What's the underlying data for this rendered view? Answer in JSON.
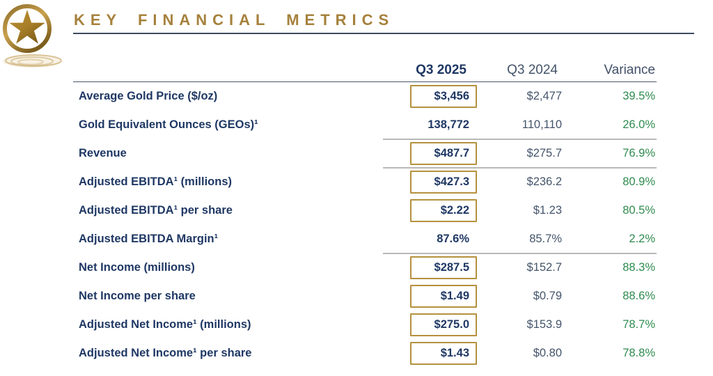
{
  "slide": {
    "title": "KEY FINANCIAL METRICS",
    "logo_icon": "gold-star-ripple-logo"
  },
  "table": {
    "columns": [
      "Q3 2025",
      "Q3 2024",
      "Variance"
    ],
    "rows": [
      {
        "label": "Average Gold Price ($/oz)",
        "q3_2025": "$3,456",
        "q3_2024": "$2,477",
        "variance": "39.5%",
        "boxed": true,
        "divider_after": false
      },
      {
        "label": "Gold Equivalent Ounces (GEOs)¹",
        "q3_2025": "138,772",
        "q3_2024": "110,110",
        "variance": "26.0%",
        "boxed": false,
        "divider_after": true
      },
      {
        "label": "Revenue",
        "q3_2025": "$487.7",
        "q3_2024": "$275.7",
        "variance": "76.9%",
        "boxed": true,
        "divider_after": true
      },
      {
        "label": "Adjusted EBITDA¹ (millions)",
        "q3_2025": "$427.3",
        "q3_2024": "$236.2",
        "variance": "80.9%",
        "boxed": true,
        "divider_after": false
      },
      {
        "label": "Adjusted EBITDA¹ per share",
        "q3_2025": "$2.22",
        "q3_2024": "$1.23",
        "variance": "80.5%",
        "boxed": true,
        "divider_after": false
      },
      {
        "label": "Adjusted EBITDA Margin¹",
        "q3_2025": "87.6%",
        "q3_2024": "85.7%",
        "variance": "2.2%",
        "boxed": false,
        "divider_after": true
      },
      {
        "label": "Net Income (millions)",
        "q3_2025": "$287.5",
        "q3_2024": "$152.7",
        "variance": "88.3%",
        "boxed": true,
        "divider_after": false
      },
      {
        "label": "Net Income per share",
        "q3_2025": "$1.49",
        "q3_2024": "$0.79",
        "variance": "88.6%",
        "boxed": true,
        "divider_after": false
      },
      {
        "label": "Adjusted Net Income¹ (millions)",
        "q3_2025": "$275.0",
        "q3_2024": "$153.9",
        "variance": "78.7%",
        "boxed": true,
        "divider_after": false
      },
      {
        "label": "Adjusted Net Income¹ per share",
        "q3_2025": "$1.43",
        "q3_2024": "$0.80",
        "variance": "78.8%",
        "boxed": true,
        "divider_after": false
      }
    ]
  },
  "colors": {
    "title_gold": "#a6813c",
    "box_border": "#b5913e",
    "navy": "#1f3864",
    "slate": "#44546a",
    "variance_green": "#2f8b4f",
    "divider_gray": "#b8b8b8",
    "title_rule": "#3e4a61",
    "header_rule": "#4a5870"
  }
}
